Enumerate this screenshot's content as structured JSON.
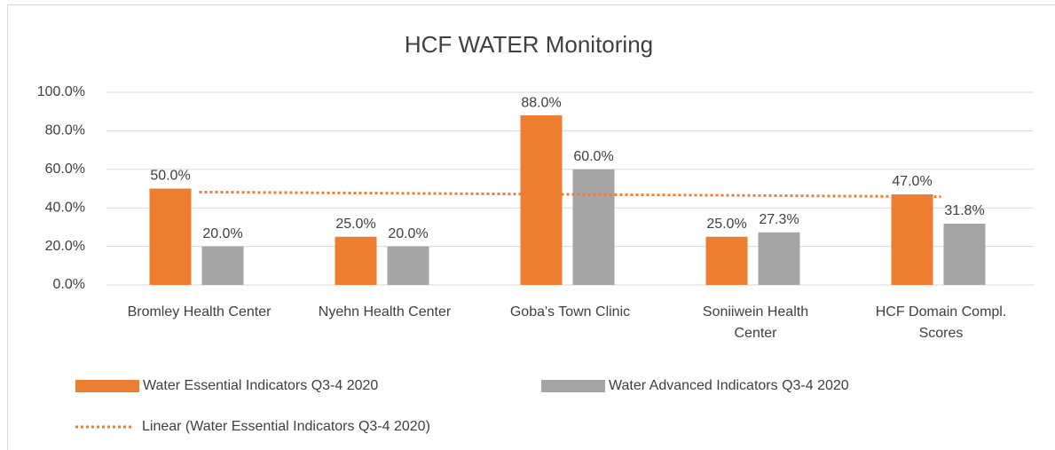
{
  "chart_data": {
    "type": "bar",
    "title": "HCF WATER Monitoring",
    "categories": [
      "Bromley Health Center",
      "Nyehn Health Center",
      "Goba's Town Clinic",
      "Soniiwein Health Center",
      "HCF Domain Compl. Scores"
    ],
    "series": [
      {
        "name": "Water Essential Indicators Q3-4 2020",
        "color": "#ed7d31",
        "values": [
          50,
          25,
          88,
          25,
          47
        ],
        "value_labels": [
          "50.0%",
          "25.0%",
          "88.0%",
          "25.0%",
          "47.0%"
        ]
      },
      {
        "name": "Water Advanced Indicators Q3-4 2020",
        "color": "#a5a5a5",
        "values": [
          20,
          20,
          60,
          27.3,
          31.8
        ],
        "value_labels": [
          "20.0%",
          "20.0%",
          "60.0%",
          "27.3%",
          "31.8%"
        ]
      }
    ],
    "trendline": {
      "type": "linear",
      "series": 0,
      "name": "Linear (Water Essential Indicators Q3-4 2020)"
    },
    "ylim": [
      0,
      100
    ],
    "yticks": [
      {
        "value": 0,
        "label": "0.0%"
      },
      {
        "value": 20,
        "label": "20.0%"
      },
      {
        "value": 40,
        "label": "40.0%"
      },
      {
        "value": 60,
        "label": "60.0%"
      },
      {
        "value": 80,
        "label": "80.0%"
      },
      {
        "value": 100,
        "label": "100.0%"
      }
    ],
    "grid": true,
    "legend": "bottom"
  }
}
